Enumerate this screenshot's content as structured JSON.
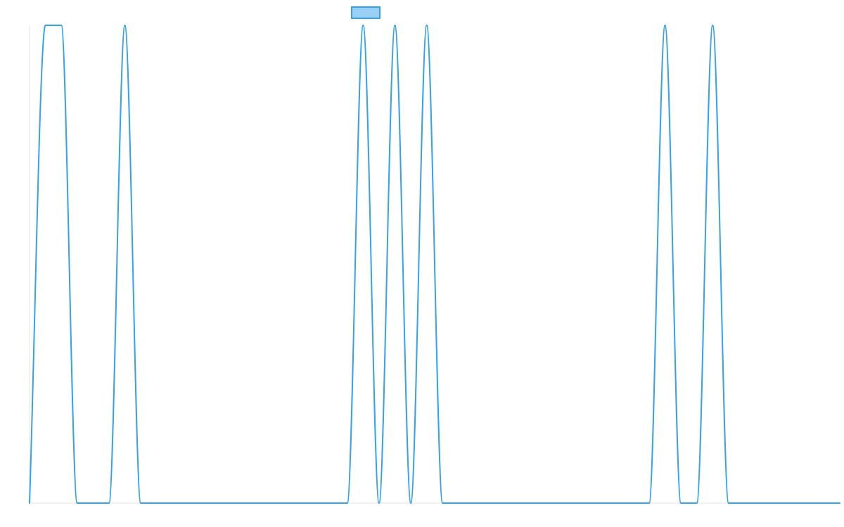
{
  "chart_data": {
    "type": "line",
    "title": "",
    "xlabel": "",
    "ylabel": "",
    "grid": false,
    "legend_position": "top-center",
    "x": [
      0,
      1,
      2,
      3,
      4,
      5,
      6,
      7,
      8,
      9,
      10,
      11,
      12,
      13,
      14,
      15,
      16,
      17,
      18,
      19,
      20,
      21,
      22,
      23,
      24,
      25,
      26,
      27,
      28,
      29,
      30,
      31,
      32,
      33,
      34,
      35,
      36,
      37,
      38,
      39,
      40,
      41,
      42,
      43,
      44,
      45,
      46,
      47,
      48,
      49,
      50,
      51
    ],
    "xlim": [
      0,
      51
    ],
    "ylim": [
      0,
      1
    ],
    "series": [
      {
        "name": "",
        "color": "#36a2eb",
        "fill_color": "#9ad0f5",
        "values": [
          0,
          1,
          1,
          0,
          0,
          0,
          1,
          0,
          0,
          0,
          0,
          0,
          0,
          0,
          0,
          0,
          0,
          0,
          0,
          0,
          0,
          1,
          0,
          1,
          0,
          1,
          0,
          0,
          0,
          0,
          0,
          0,
          0,
          0,
          0,
          0,
          0,
          0,
          0,
          0,
          1,
          0,
          0,
          1,
          0,
          0,
          0,
          0,
          0,
          0,
          0,
          0
        ]
      }
    ]
  }
}
